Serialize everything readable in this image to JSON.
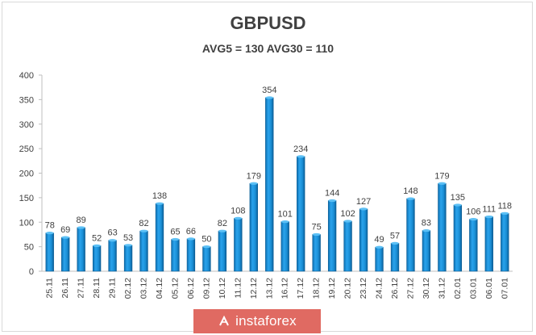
{
  "chart_data": {
    "type": "bar",
    "title": "GBPUSD",
    "subtitle": "AVG5 = 130 AVG30 = 110",
    "categories": [
      "25.11",
      "26.11",
      "27.11",
      "28.11",
      "29.11",
      "02.12",
      "03.12",
      "04.12",
      "05.12",
      "06.12",
      "09.12",
      "10.12",
      "11.12",
      "12.12",
      "13.12",
      "16.12",
      "17.12",
      "18.12",
      "19.12",
      "20.12",
      "23.12",
      "24.12",
      "26.12",
      "27.12",
      "30.12",
      "31.12",
      "02.01",
      "03.01",
      "06.01",
      "07.01"
    ],
    "values": [
      78,
      69,
      89,
      52,
      63,
      53,
      82,
      138,
      65,
      66,
      50,
      82,
      108,
      179,
      354,
      101,
      234,
      75,
      144,
      102,
      127,
      49,
      57,
      148,
      83,
      179,
      135,
      106,
      111,
      118
    ],
    "ylim": [
      0,
      400
    ],
    "yticks": [
      0,
      50,
      100,
      150,
      200,
      250,
      300,
      350,
      400
    ],
    "grid": false,
    "legend": "none",
    "bar_color": "#1a8fd6"
  },
  "watermark": {
    "text": "instaforex",
    "background": "#e06a62"
  }
}
